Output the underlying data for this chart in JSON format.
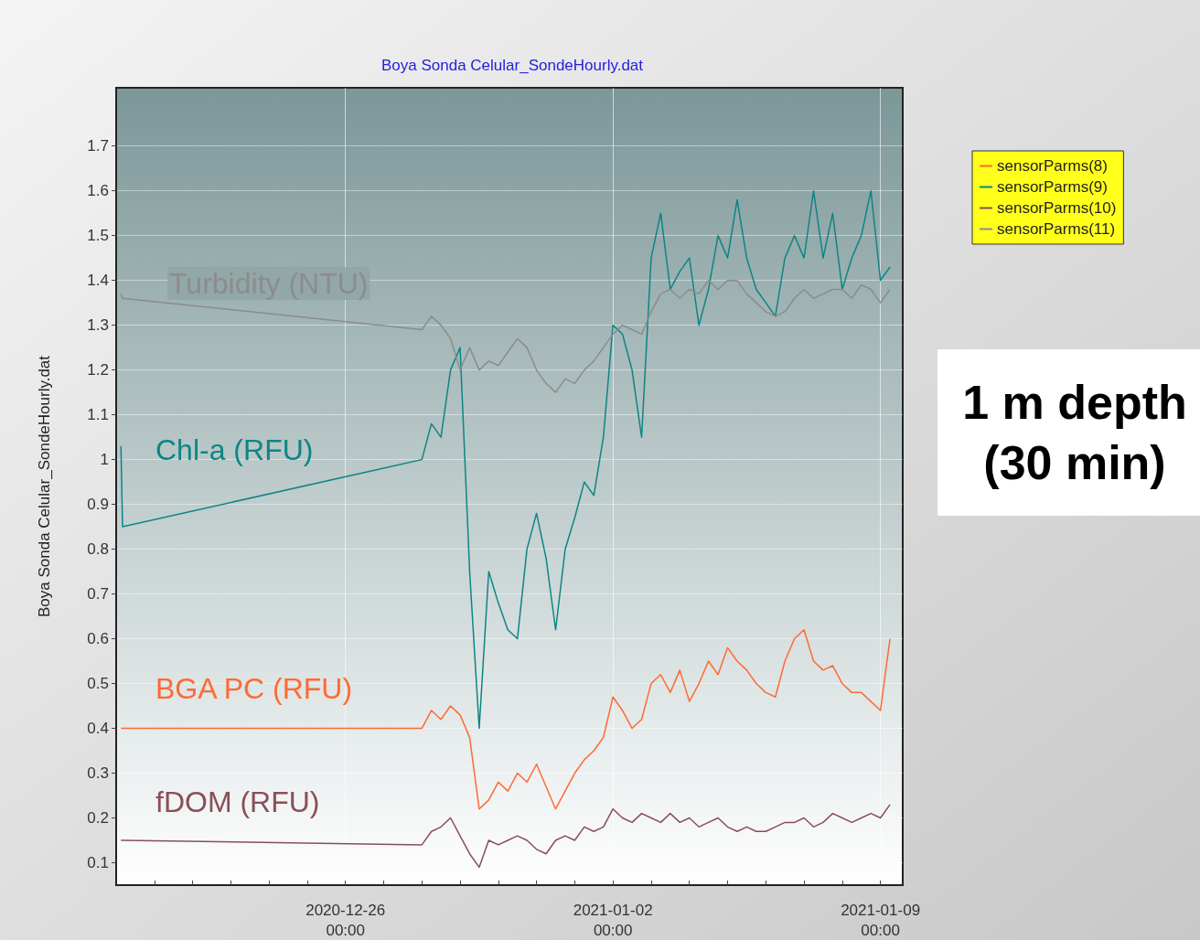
{
  "chart_data": {
    "type": "line",
    "title": "Boya Sonda Celular_SondeHourly.dat",
    "ylabel": "Boya Sonda Celular_SondeHourly.dat",
    "x": [
      "2020-12-20T03:00",
      "2020-12-20T04:00",
      "2020-12-28T00:00",
      "2020-12-28T06:00",
      "2020-12-28T12:00",
      "2020-12-28T18:00",
      "2020-12-29T00:00",
      "2020-12-29T06:00",
      "2020-12-29T12:00",
      "2020-12-29T18:00",
      "2020-12-30T00:00",
      "2020-12-30T06:00",
      "2020-12-30T12:00",
      "2020-12-30T18:00",
      "2020-12-31T00:00",
      "2020-12-31T06:00",
      "2020-12-31T12:00",
      "2020-12-31T18:00",
      "2021-01-01T00:00",
      "2021-01-01T06:00",
      "2021-01-01T12:00",
      "2021-01-01T18:00",
      "2021-01-02T00:00",
      "2021-01-02T06:00",
      "2021-01-02T12:00",
      "2021-01-02T18:00",
      "2021-01-03T00:00",
      "2021-01-03T06:00",
      "2021-01-03T12:00",
      "2021-01-03T18:00",
      "2021-01-04T00:00",
      "2021-01-04T06:00",
      "2021-01-04T12:00",
      "2021-01-04T18:00",
      "2021-01-05T00:00",
      "2021-01-05T06:00",
      "2021-01-05T12:00",
      "2021-01-05T18:00",
      "2021-01-06T00:00",
      "2021-01-06T06:00",
      "2021-01-06T12:00",
      "2021-01-06T18:00",
      "2021-01-07T00:00",
      "2021-01-07T06:00",
      "2021-01-07T12:00",
      "2021-01-07T18:00",
      "2021-01-08T00:00",
      "2021-01-08T06:00",
      "2021-01-08T12:00",
      "2021-01-08T18:00",
      "2021-01-09T00:00",
      "2021-01-09T06:00"
    ],
    "series": [
      {
        "name": "sensorParms(8)",
        "color": "#ff6a33",
        "values": [
          0.4,
          0.4,
          0.4,
          0.44,
          0.42,
          0.45,
          0.43,
          0.38,
          0.22,
          0.24,
          0.28,
          0.26,
          0.3,
          0.28,
          0.32,
          0.27,
          0.22,
          0.26,
          0.3,
          0.33,
          0.35,
          0.38,
          0.47,
          0.44,
          0.4,
          0.42,
          0.5,
          0.52,
          0.48,
          0.53,
          0.46,
          0.5,
          0.55,
          0.52,
          0.58,
          0.55,
          0.53,
          0.5,
          0.48,
          0.47,
          0.55,
          0.6,
          0.62,
          0.55,
          0.53,
          0.54,
          0.5,
          0.48,
          0.48,
          0.46,
          0.44,
          0.6
        ]
      },
      {
        "name": "sensorParms(9)",
        "color": "#0e8585",
        "values": [
          1.03,
          0.85,
          1.0,
          1.08,
          1.05,
          1.2,
          1.25,
          0.75,
          0.4,
          0.75,
          0.68,
          0.62,
          0.6,
          0.8,
          0.88,
          0.78,
          0.62,
          0.8,
          0.87,
          0.95,
          0.92,
          1.05,
          1.3,
          1.28,
          1.2,
          1.05,
          1.45,
          1.55,
          1.38,
          1.42,
          1.45,
          1.3,
          1.38,
          1.5,
          1.45,
          1.58,
          1.45,
          1.38,
          1.35,
          1.32,
          1.45,
          1.5,
          1.45,
          1.6,
          1.45,
          1.55,
          1.38,
          1.45,
          1.5,
          1.6,
          1.4,
          1.43
        ]
      },
      {
        "name": "sensorParms(10)",
        "color": "#8a4f55",
        "values": [
          0.15,
          0.15,
          0.14,
          0.17,
          0.18,
          0.2,
          0.16,
          0.12,
          0.09,
          0.15,
          0.14,
          0.15,
          0.16,
          0.15,
          0.13,
          0.12,
          0.15,
          0.16,
          0.15,
          0.18,
          0.17,
          0.18,
          0.22,
          0.2,
          0.19,
          0.21,
          0.2,
          0.19,
          0.21,
          0.19,
          0.2,
          0.18,
          0.19,
          0.2,
          0.18,
          0.17,
          0.18,
          0.17,
          0.17,
          0.18,
          0.19,
          0.19,
          0.2,
          0.18,
          0.19,
          0.21,
          0.2,
          0.19,
          0.2,
          0.21,
          0.2,
          0.23
        ]
      },
      {
        "name": "sensorParms(11)",
        "color": "#8c8c8c",
        "values": [
          1.37,
          1.36,
          1.29,
          1.32,
          1.3,
          1.27,
          1.2,
          1.25,
          1.2,
          1.22,
          1.21,
          1.24,
          1.27,
          1.25,
          1.2,
          1.17,
          1.15,
          1.18,
          1.17,
          1.2,
          1.22,
          1.25,
          1.28,
          1.3,
          1.29,
          1.28,
          1.33,
          1.37,
          1.38,
          1.36,
          1.38,
          1.37,
          1.4,
          1.38,
          1.4,
          1.4,
          1.37,
          1.35,
          1.33,
          1.32,
          1.33,
          1.36,
          1.38,
          1.36,
          1.37,
          1.38,
          1.38,
          1.36,
          1.39,
          1.38,
          1.35,
          1.38
        ]
      }
    ],
    "annotations": [
      "BGA PC (RFU)",
      "Chl-a (RFU)",
      "fDOM (RFU)",
      "Turbidity (NTU)",
      "1 m depth\n(30 min)"
    ],
    "xlim": [
      "2020-12-20T00:00",
      "2021-01-09T14:00"
    ],
    "xticks": [
      {
        "value": "2020-12-21T00:00",
        "label": null
      },
      {
        "value": "2020-12-22T00:00",
        "label": null
      },
      {
        "value": "2020-12-23T00:00",
        "label": null
      },
      {
        "value": "2020-12-24T00:00",
        "label": null
      },
      {
        "value": "2020-12-25T00:00",
        "label": null
      },
      {
        "value": "2020-12-26T00:00",
        "label": "2020-12-26\n00:00"
      },
      {
        "value": "2020-12-27T00:00",
        "label": null
      },
      {
        "value": "2020-12-28T00:00",
        "label": null
      },
      {
        "value": "2020-12-29T00:00",
        "label": null
      },
      {
        "value": "2020-12-30T00:00",
        "label": null
      },
      {
        "value": "2020-12-31T00:00",
        "label": null
      },
      {
        "value": "2021-01-01T00:00",
        "label": null
      },
      {
        "value": "2021-01-02T00:00",
        "label": "2021-01-02\n00:00"
      },
      {
        "value": "2021-01-03T00:00",
        "label": null
      },
      {
        "value": "2021-01-04T00:00",
        "label": null
      },
      {
        "value": "2021-01-05T00:00",
        "label": null
      },
      {
        "value": "2021-01-06T00:00",
        "label": null
      },
      {
        "value": "2021-01-07T00:00",
        "label": null
      },
      {
        "value": "2021-01-08T00:00",
        "label": null
      },
      {
        "value": "2021-01-09T00:00",
        "label": "2021-01-09\n00:00"
      }
    ],
    "ylim": [
      0.05,
      1.83
    ],
    "yticks": [
      0.1,
      0.2,
      0.3,
      0.4,
      0.5,
      0.6,
      0.7,
      0.8,
      0.9,
      1.0,
      1.1,
      1.2,
      1.3,
      1.4,
      1.5,
      1.6,
      1.7
    ],
    "grid": true,
    "legend": "top right",
    "marker": "none",
    "line_style": "solid"
  }
}
